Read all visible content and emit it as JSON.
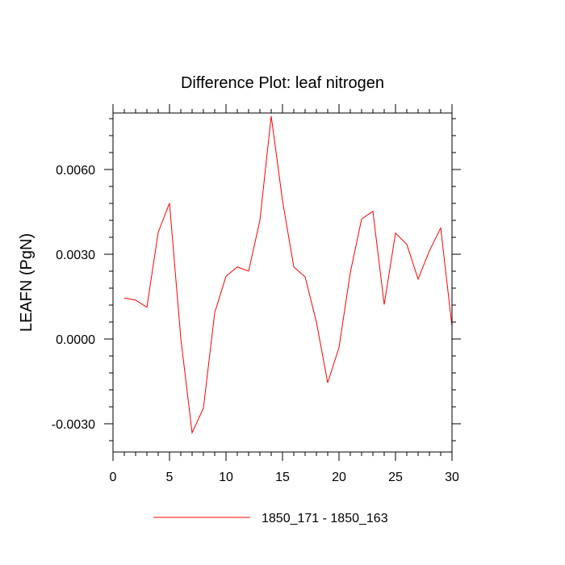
{
  "chart_data": {
    "type": "line",
    "title": "Difference Plot: leaf nitrogen",
    "xlabel": "",
    "ylabel": "LEAFN  (PgN)",
    "xlim": [
      0,
      30
    ],
    "ylim": [
      -0.004,
      0.008
    ],
    "x_ticks": [
      0,
      5,
      10,
      15,
      20,
      25,
      30
    ],
    "x_tick_labels": [
      "0",
      "5",
      "10",
      "15",
      "20",
      "25",
      "30"
    ],
    "x_minor_ticks": [
      1,
      2,
      3,
      4,
      6,
      7,
      8,
      9,
      11,
      12,
      13,
      14,
      16,
      17,
      18,
      19,
      21,
      22,
      23,
      24,
      26,
      27,
      28,
      29
    ],
    "y_ticks": [
      -0.003,
      0.0,
      0.003,
      0.006
    ],
    "y_tick_labels": [
      "-0.0030",
      "0.0000",
      "0.0030",
      "0.0060"
    ],
    "y_minor_ticks": [
      -0.0036,
      -0.0024,
      -0.0018,
      -0.0012,
      -0.0006,
      0.0006,
      0.0012,
      0.0018,
      0.0024,
      0.0036,
      0.0042,
      0.0048,
      0.0054,
      0.0066,
      0.0072,
      0.0078
    ],
    "grid": false,
    "legend_position": "bottom",
    "series": [
      {
        "name": "1850_171 - 1850_163",
        "color": "#ff0000",
        "x": [
          1,
          2,
          3,
          4,
          5,
          6,
          7,
          8,
          9,
          10,
          11,
          12,
          13,
          14,
          15,
          16,
          17,
          18,
          19,
          20,
          21,
          22,
          23,
          24,
          25,
          26,
          27,
          28,
          29,
          30
        ],
        "y": [
          0.00145,
          0.00138,
          0.00112,
          0.00378,
          0.00481,
          2e-05,
          -0.00332,
          -0.00245,
          0.00093,
          0.00222,
          0.00255,
          0.0024,
          0.0042,
          0.00789,
          0.0049,
          0.00255,
          0.0022,
          0.0006,
          -0.00155,
          -0.0003,
          0.00235,
          0.00425,
          0.00452,
          0.00122,
          0.00375,
          0.00335,
          0.00212,
          0.00312,
          0.00393,
          0.00045
        ]
      }
    ]
  }
}
